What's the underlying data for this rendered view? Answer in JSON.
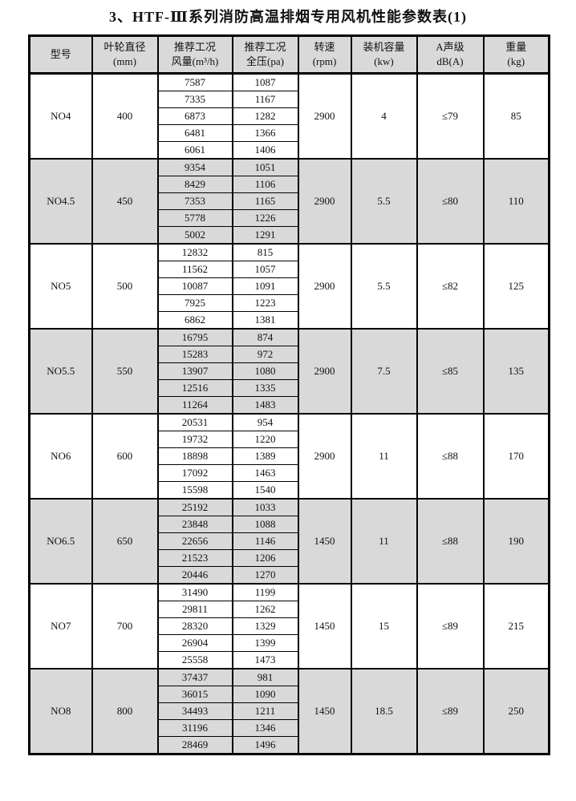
{
  "title": "3、HTF-Ⅲ系列消防高温排烟专用风机性能参数表(1)",
  "colors": {
    "shaded_bg": "#d9d9d9",
    "border": "#000000",
    "text": "#111111"
  },
  "table": {
    "headers": [
      {
        "key": "model",
        "line1": "型号",
        "line2": ""
      },
      {
        "key": "diameter",
        "line1": "叶轮直径",
        "line2": "(mm)"
      },
      {
        "key": "flow",
        "line1": "推荐工况",
        "line2": "风量(m³/h)"
      },
      {
        "key": "pressure",
        "line1": "推荐工况",
        "line2": "全压(pa)"
      },
      {
        "key": "rpm",
        "line1": "转速",
        "line2": "(rpm)"
      },
      {
        "key": "power",
        "line1": "装机容量",
        "line2": "(kw)"
      },
      {
        "key": "noise",
        "line1": "A声级",
        "line2": "dB(A)"
      },
      {
        "key": "weight",
        "line1": "重量",
        "line2": "(kg)"
      }
    ],
    "groups": [
      {
        "model": "NO4",
        "diameter": "400",
        "rpm": "2900",
        "power": "4",
        "noise": "≤79",
        "weight": "85",
        "shaded": false,
        "points": [
          {
            "flow": "7587",
            "pressure": "1087"
          },
          {
            "flow": "7335",
            "pressure": "1167"
          },
          {
            "flow": "6873",
            "pressure": "1282"
          },
          {
            "flow": "6481",
            "pressure": "1366"
          },
          {
            "flow": "6061",
            "pressure": "1406"
          }
        ]
      },
      {
        "model": "NO4.5",
        "diameter": "450",
        "rpm": "2900",
        "power": "5.5",
        "noise": "≤80",
        "weight": "110",
        "shaded": true,
        "points": [
          {
            "flow": "9354",
            "pressure": "1051"
          },
          {
            "flow": "8429",
            "pressure": "1106"
          },
          {
            "flow": "7353",
            "pressure": "1165"
          },
          {
            "flow": "5778",
            "pressure": "1226"
          },
          {
            "flow": "5002",
            "pressure": "1291"
          }
        ]
      },
      {
        "model": "NO5",
        "diameter": "500",
        "rpm": "2900",
        "power": "5.5",
        "noise": "≤82",
        "weight": "125",
        "shaded": false,
        "points": [
          {
            "flow": "12832",
            "pressure": "815"
          },
          {
            "flow": "11562",
            "pressure": "1057"
          },
          {
            "flow": "10087",
            "pressure": "1091"
          },
          {
            "flow": "7925",
            "pressure": "1223"
          },
          {
            "flow": "6862",
            "pressure": "1381"
          }
        ]
      },
      {
        "model": "NO5.5",
        "diameter": "550",
        "rpm": "2900",
        "power": "7.5",
        "noise": "≤85",
        "weight": "135",
        "shaded": true,
        "points": [
          {
            "flow": "16795",
            "pressure": "874"
          },
          {
            "flow": "15283",
            "pressure": "972"
          },
          {
            "flow": "13907",
            "pressure": "1080"
          },
          {
            "flow": "12516",
            "pressure": "1335"
          },
          {
            "flow": "11264",
            "pressure": "1483"
          }
        ]
      },
      {
        "model": "NO6",
        "diameter": "600",
        "rpm": "2900",
        "power": "11",
        "noise": "≤88",
        "weight": "170",
        "shaded": false,
        "points": [
          {
            "flow": "20531",
            "pressure": "954"
          },
          {
            "flow": "19732",
            "pressure": "1220"
          },
          {
            "flow": "18898",
            "pressure": "1389"
          },
          {
            "flow": "17092",
            "pressure": "1463"
          },
          {
            "flow": "15598",
            "pressure": "1540"
          }
        ]
      },
      {
        "model": "NO6.5",
        "diameter": "650",
        "rpm": "1450",
        "power": "11",
        "noise": "≤88",
        "weight": "190",
        "shaded": true,
        "points": [
          {
            "flow": "25192",
            "pressure": "1033"
          },
          {
            "flow": "23848",
            "pressure": "1088"
          },
          {
            "flow": "22656",
            "pressure": "1146"
          },
          {
            "flow": "21523",
            "pressure": "1206"
          },
          {
            "flow": "20446",
            "pressure": "1270"
          }
        ]
      },
      {
        "model": "NO7",
        "diameter": "700",
        "rpm": "1450",
        "power": "15",
        "noise": "≤89",
        "weight": "215",
        "shaded": false,
        "points": [
          {
            "flow": "31490",
            "pressure": "1199"
          },
          {
            "flow": "29811",
            "pressure": "1262"
          },
          {
            "flow": "28320",
            "pressure": "1329"
          },
          {
            "flow": "26904",
            "pressure": "1399"
          },
          {
            "flow": "25558",
            "pressure": "1473"
          }
        ]
      },
      {
        "model": "NO8",
        "diameter": "800",
        "rpm": "1450",
        "power": "18.5",
        "noise": "≤89",
        "weight": "250",
        "shaded": true,
        "points": [
          {
            "flow": "37437",
            "pressure": "981"
          },
          {
            "flow": "36015",
            "pressure": "1090"
          },
          {
            "flow": "34493",
            "pressure": "1211"
          },
          {
            "flow": "31196",
            "pressure": "1346"
          },
          {
            "flow": "28469",
            "pressure": "1496"
          }
        ]
      }
    ]
  }
}
